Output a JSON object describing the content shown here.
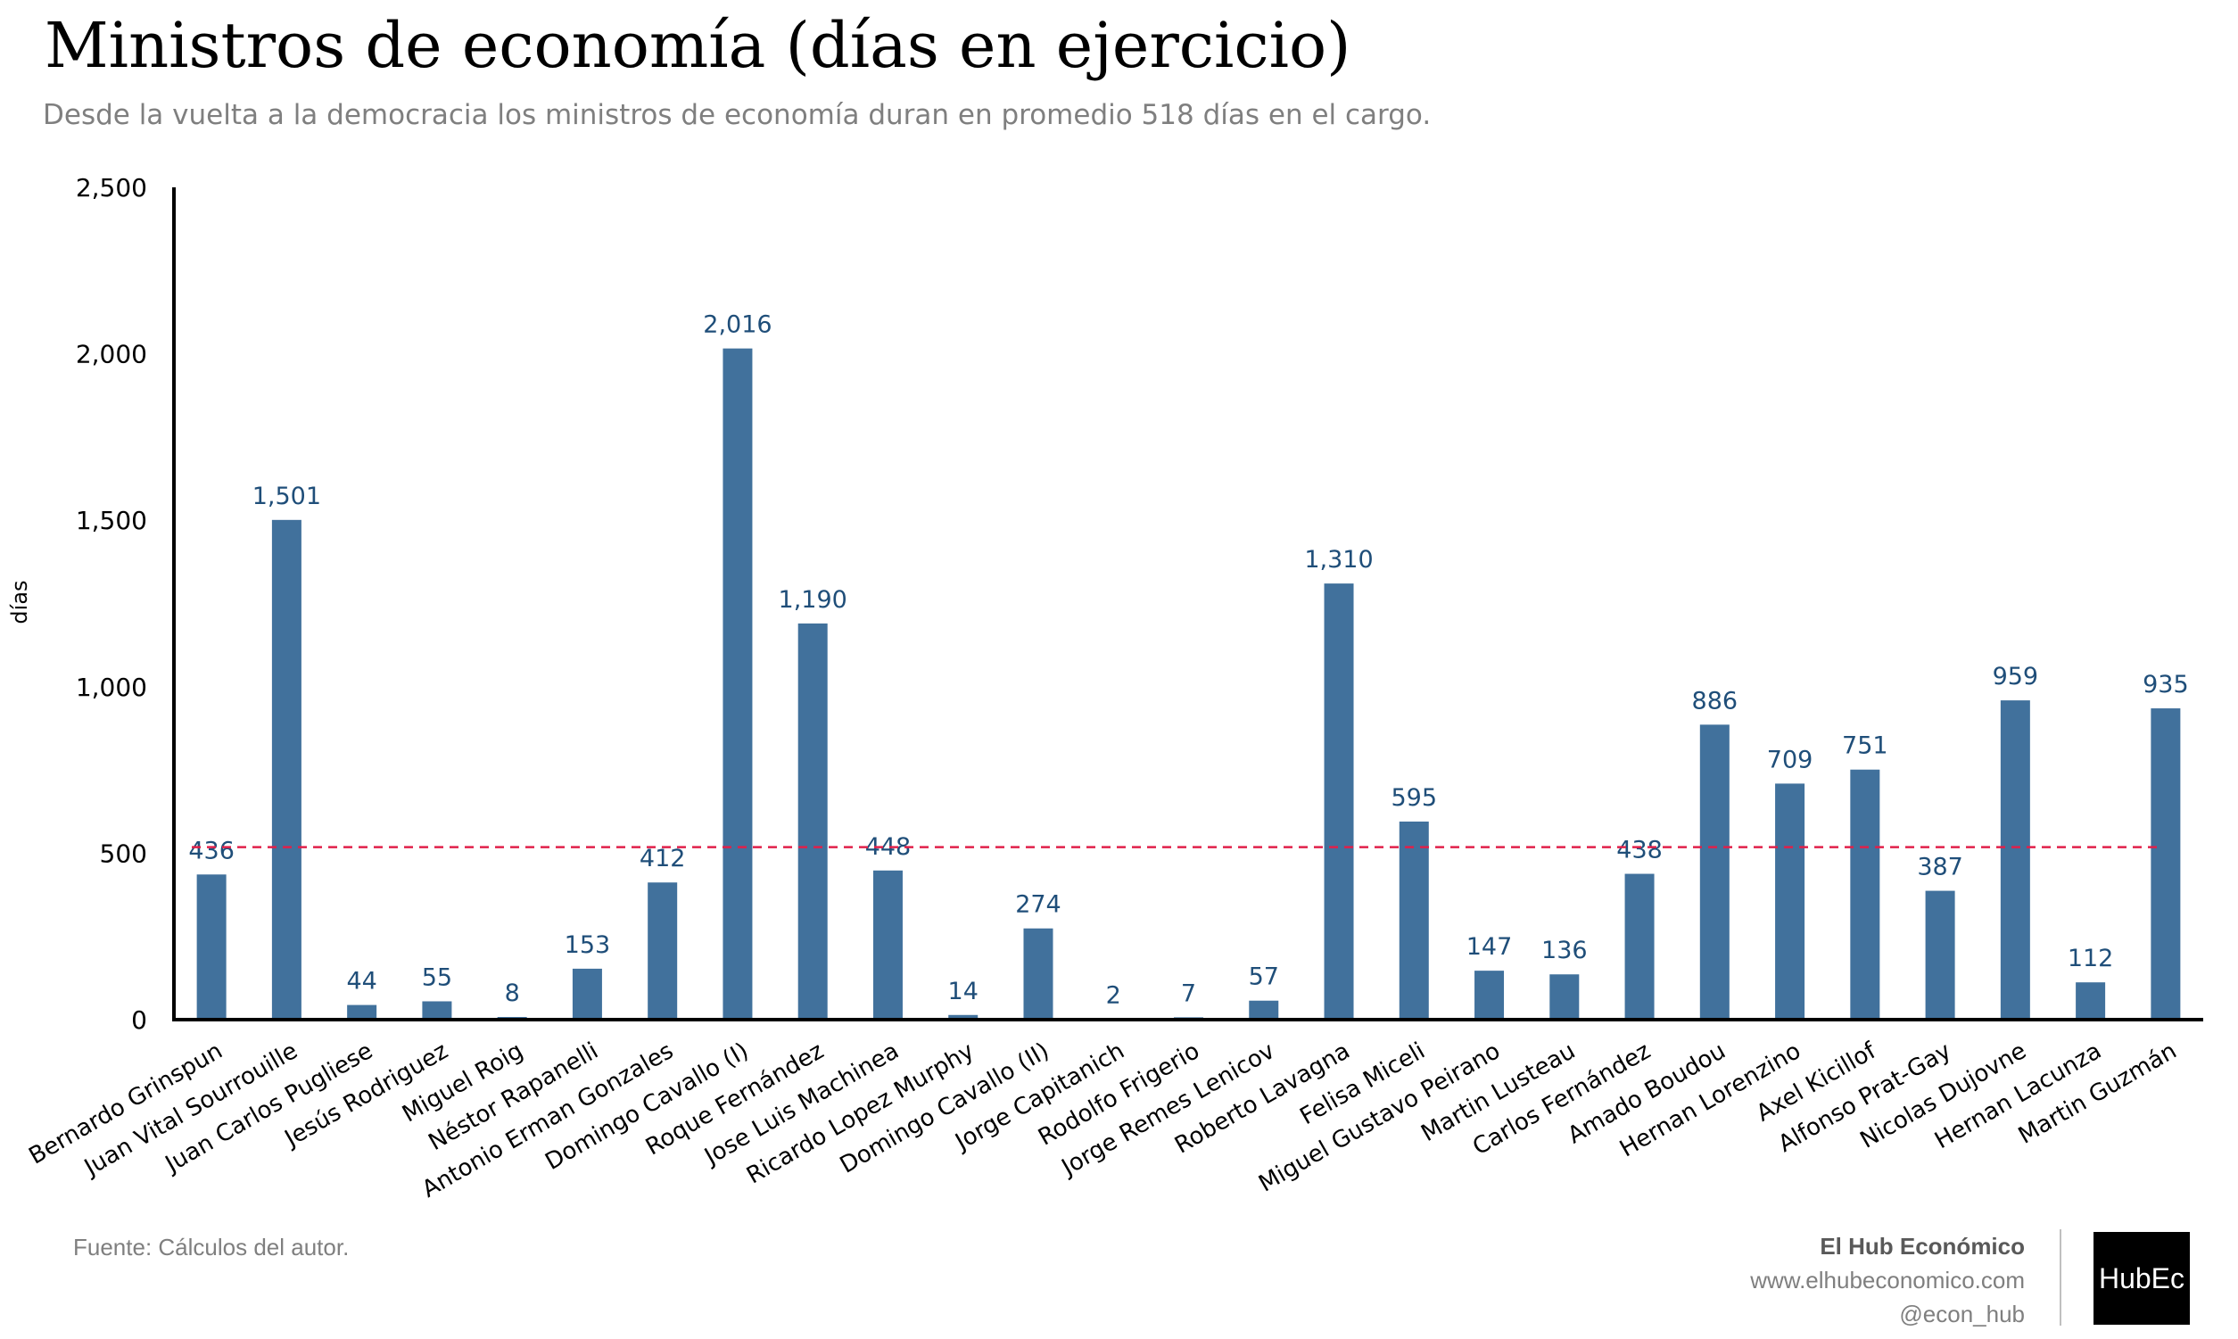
{
  "title": "Ministros de economía (días en ejercicio)",
  "subtitle": "Desde la vuelta a la democracia los ministros de economía duran en promedio 518 días en el cargo.",
  "source": "Fuente: Cálculos del autor.",
  "brand": {
    "name": "El Hub Económico",
    "url": "www.elhubeconomico.com",
    "handle": "@econ_hub",
    "logo_text": "HubEc"
  },
  "colors": {
    "bar": "#41719c",
    "label": "#1f4e79",
    "average_line": "#e0204a",
    "axis": "#000000"
  },
  "chart_data": {
    "type": "bar",
    "ylabel": "días",
    "ylim": [
      0,
      2500
    ],
    "yticks": [
      0,
      500,
      1000,
      1500,
      2000,
      2500
    ],
    "yticklabels": [
      "0",
      "500",
      "1,000",
      "1,500",
      "2,000",
      "2,500"
    ],
    "grid": false,
    "average": 518,
    "categories": [
      "Bernardo Grinspun",
      "Juan Vital Sourrouille",
      "Juan Carlos Pugliese",
      "Jesús Rodriguez",
      "Miguel Roig",
      "Néstor Rapanelli",
      "Antonio Erman Gonzales",
      "Domingo Cavallo (I)",
      "Roque Fernández",
      "Jose Luis Machinea",
      "Ricardo Lopez Murphy",
      "Domingo Cavallo (II)",
      "Jorge Capitanich",
      "Rodolfo Frigerio",
      "Jorge Remes Lenicov",
      "Roberto Lavagna",
      "Felisa Miceli",
      "Miguel Gustavo Peirano",
      "Martin Lusteau",
      "Carlos Fernández",
      "Amado Boudou",
      "Hernan Lorenzino",
      "Axel Kicillof",
      "Alfonso Prat-Gay",
      "Nicolas Dujovne",
      "Hernan Lacunza",
      "Martin Guzmán"
    ],
    "values": [
      436,
      1501,
      44,
      55,
      8,
      153,
      412,
      2016,
      1190,
      448,
      14,
      274,
      2,
      7,
      57,
      1310,
      595,
      147,
      136,
      438,
      886,
      709,
      751,
      387,
      959,
      112,
      935
    ],
    "data_labels": [
      "436",
      "1,501",
      "44",
      "55",
      "8",
      "153",
      "412",
      "2,016",
      "1,190",
      "448",
      "14",
      "274",
      "2",
      "7",
      "57",
      "1,310",
      "595",
      "147",
      "136",
      "438",
      "886",
      "709",
      "751",
      "387",
      "959",
      "112",
      "935"
    ]
  }
}
